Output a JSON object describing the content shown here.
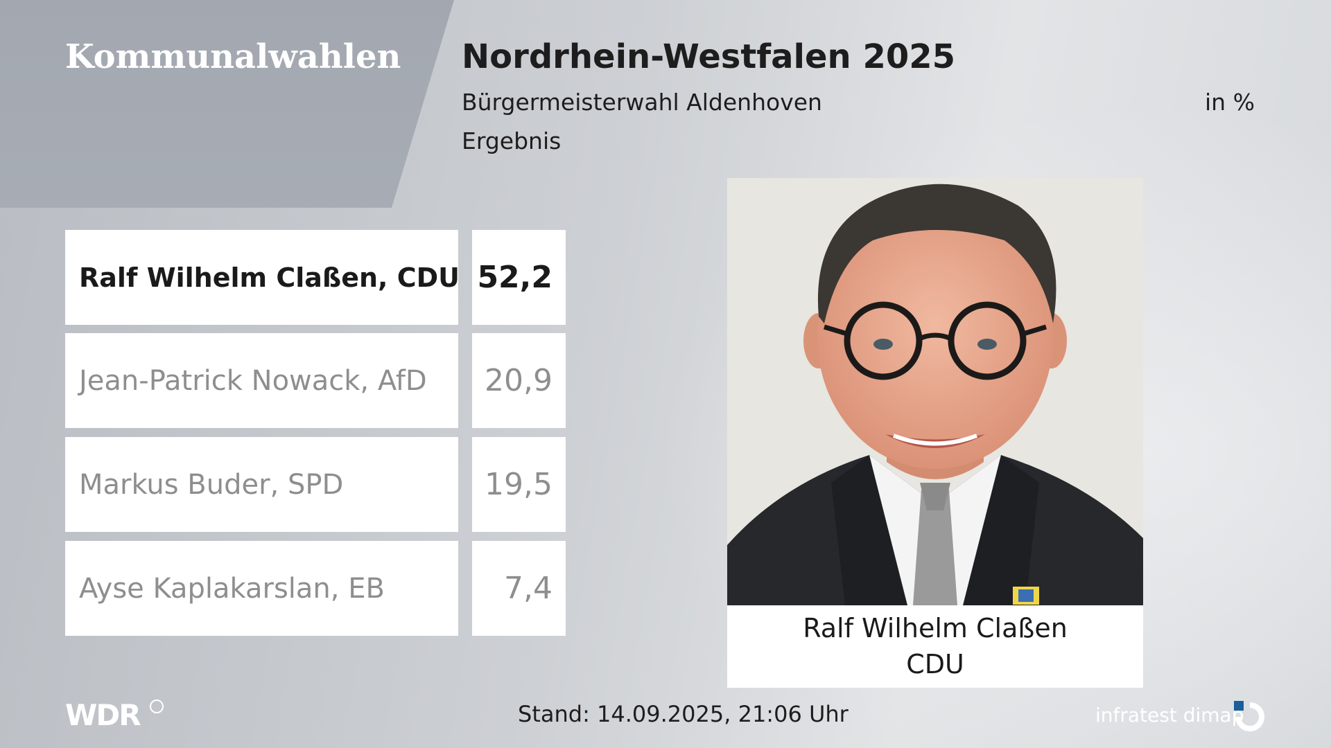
{
  "header": {
    "brand": "Kommunalwahlen",
    "title": "Nordrhein-Westfalen 2025",
    "subtitle": "Bürgermeisterwahl Aldenhoven",
    "subtitle2": "Ergebnis",
    "unit": "in %"
  },
  "results": [
    {
      "name": "Ralf Wilhelm Claßen, CDU",
      "value": "52,2"
    },
    {
      "name": "Jean-Patrick Nowack, AfD",
      "value": "20,9"
    },
    {
      "name": "Markus Buder, SPD",
      "value": "19,5"
    },
    {
      "name": "Ayse Kaplakarslan, EB",
      "value": "7,4"
    }
  ],
  "winner": {
    "name": "Ralf Wilhelm Claßen",
    "party": "CDU"
  },
  "footer": {
    "broadcaster": "WDR",
    "stand": "Stand: 14.09.2025, 21:06 Uhr",
    "source": "infratest dimap"
  },
  "colors": {
    "text_dark": "#1a1a1a",
    "text_muted": "#8e8e8e",
    "accent_blue": "#1b5e9e"
  }
}
